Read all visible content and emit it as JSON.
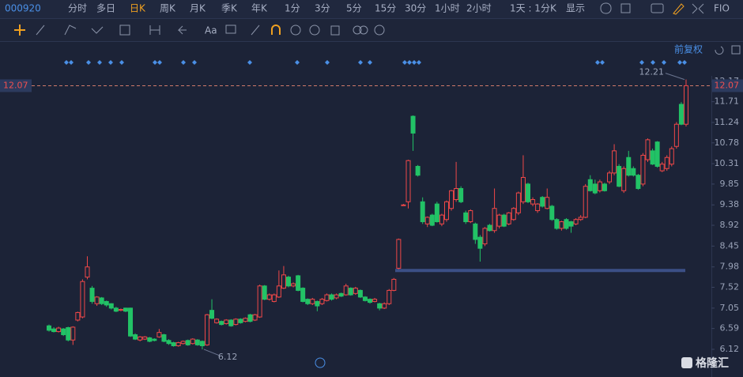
{
  "toolbar": {
    "code": "000920",
    "periods": [
      "分时",
      "多日",
      "日K",
      "周K",
      "月K",
      "季K",
      "年K",
      "1分",
      "3分",
      "5分",
      "15分",
      "30分",
      "1小时",
      "2小时"
    ],
    "active": "日K",
    "interval": "1天 : 1分K",
    "display": "显示",
    "fio": "FIO",
    "font_tool": "Aa",
    "adjust": "前复权",
    "watermark": "格隆汇"
  },
  "chart_data": {
    "type": "candlestick",
    "ylim": [
      5.62,
      12.31
    ],
    "yticks": [
      12.17,
      11.71,
      11.24,
      10.78,
      10.31,
      9.85,
      9.38,
      8.92,
      8.45,
      7.98,
      7.52,
      7.05,
      6.59,
      6.12
    ],
    "up_color": "#f04848",
    "down_color": "#22c266",
    "last_price": 12.07,
    "level_line": 7.9,
    "ohlc": [
      [
        6.65,
        6.68,
        6.52,
        6.55
      ],
      [
        6.58,
        6.62,
        6.5,
        6.52
      ],
      [
        6.52,
        6.63,
        6.5,
        6.6
      ],
      [
        6.58,
        6.6,
        6.42,
        6.45
      ],
      [
        6.61,
        6.63,
        6.3,
        6.33
      ],
      [
        6.33,
        6.64,
        6.22,
        6.62
      ],
      [
        6.78,
        6.97,
        6.75,
        6.95
      ],
      [
        6.85,
        7.7,
        6.82,
        7.65
      ],
      [
        7.75,
        8.22,
        7.7,
        7.98
      ],
      [
        7.5,
        7.55,
        7.15,
        7.2
      ],
      [
        7.15,
        7.32,
        7.1,
        7.3
      ],
      [
        7.28,
        7.3,
        7.12,
        7.15
      ],
      [
        7.2,
        7.22,
        7.08,
        7.12
      ],
      [
        7.15,
        7.16,
        7.02,
        7.05
      ],
      [
        7.05,
        7.08,
        6.96,
        6.98
      ],
      [
        7.0,
        7.04,
        6.98,
        7.02
      ],
      [
        7.05,
        7.06,
        6.96,
        6.98
      ],
      [
        7.05,
        7.06,
        6.4,
        6.42
      ],
      [
        6.45,
        6.48,
        6.33,
        6.35
      ],
      [
        6.33,
        6.42,
        6.3,
        6.4
      ],
      [
        6.35,
        6.42,
        6.33,
        6.4
      ],
      [
        6.38,
        6.4,
        6.28,
        6.3
      ],
      [
        6.35,
        6.37,
        6.3,
        6.32
      ],
      [
        6.4,
        6.58,
        6.38,
        6.5
      ],
      [
        6.45,
        6.47,
        6.28,
        6.3
      ],
      [
        6.32,
        6.35,
        6.22,
        6.25
      ],
      [
        6.27,
        6.29,
        6.18,
        6.2
      ],
      [
        6.2,
        6.29,
        6.18,
        6.27
      ],
      [
        6.25,
        6.32,
        6.23,
        6.3
      ],
      [
        6.32,
        6.34,
        6.2,
        6.22
      ],
      [
        6.25,
        6.37,
        6.23,
        6.35
      ],
      [
        6.33,
        6.35,
        6.2,
        6.22
      ],
      [
        6.3,
        6.32,
        6.12,
        6.2
      ],
      [
        6.22,
        6.92,
        6.2,
        6.9
      ],
      [
        7.0,
        7.25,
        6.8,
        6.82
      ],
      [
        6.72,
        6.82,
        6.7,
        6.8
      ],
      [
        6.75,
        6.77,
        6.66,
        6.68
      ],
      [
        6.7,
        6.8,
        6.68,
        6.78
      ],
      [
        6.78,
        6.8,
        6.63,
        6.65
      ],
      [
        6.68,
        6.82,
        6.66,
        6.8
      ],
      [
        6.8,
        6.82,
        6.7,
        6.72
      ],
      [
        6.75,
        6.84,
        6.73,
        6.82
      ],
      [
        6.9,
        6.92,
        6.73,
        6.75
      ],
      [
        6.78,
        6.92,
        6.76,
        6.9
      ],
      [
        6.85,
        7.58,
        6.83,
        7.55
      ],
      [
        7.55,
        7.57,
        7.23,
        7.25
      ],
      [
        7.25,
        7.38,
        7.22,
        7.35
      ],
      [
        7.2,
        7.38,
        7.18,
        7.35
      ],
      [
        7.3,
        7.9,
        7.28,
        7.55
      ],
      [
        7.5,
        8.0,
        7.48,
        7.8
      ],
      [
        7.75,
        7.78,
        7.52,
        7.55
      ],
      [
        7.55,
        7.63,
        7.52,
        7.6
      ],
      [
        7.78,
        7.8,
        7.43,
        7.45
      ],
      [
        7.5,
        7.52,
        7.18,
        7.2
      ],
      [
        7.25,
        7.27,
        7.12,
        7.15
      ],
      [
        7.15,
        7.28,
        7.12,
        7.25
      ],
      [
        7.2,
        7.22,
        6.98,
        7.1
      ],
      [
        7.15,
        7.28,
        7.12,
        7.25
      ],
      [
        7.22,
        7.38,
        7.2,
        7.35
      ],
      [
        7.35,
        7.38,
        7.22,
        7.25
      ],
      [
        7.28,
        7.38,
        7.25,
        7.35
      ],
      [
        7.38,
        7.4,
        7.3,
        7.32
      ],
      [
        7.35,
        7.6,
        7.33,
        7.55
      ],
      [
        7.5,
        7.52,
        7.33,
        7.35
      ],
      [
        7.38,
        7.53,
        7.35,
        7.5
      ],
      [
        7.45,
        7.47,
        7.28,
        7.3
      ],
      [
        7.3,
        7.32,
        7.2,
        7.22
      ],
      [
        7.25,
        7.27,
        7.15,
        7.18
      ],
      [
        7.2,
        7.28,
        7.18,
        7.25
      ],
      [
        7.15,
        7.17,
        7.0,
        7.05
      ],
      [
        7.05,
        7.18,
        7.03,
        7.15
      ],
      [
        7.15,
        7.48,
        7.12,
        7.45
      ],
      [
        7.45,
        7.73,
        7.43,
        7.7
      ],
      [
        7.95,
        8.62,
        7.93,
        8.6
      ],
      [
        9.38,
        9.4,
        9.36,
        9.38
      ],
      [
        9.45,
        10.4,
        9.3,
        10.38
      ],
      [
        11.38,
        11.4,
        10.6,
        11.0
      ],
      [
        10.25,
        10.28,
        10.02,
        10.05
      ],
      [
        9.45,
        9.55,
        8.95,
        9.0
      ],
      [
        8.95,
        9.12,
        8.88,
        9.1
      ],
      [
        9.15,
        9.18,
        8.9,
        8.92
      ],
      [
        9.4,
        9.45,
        8.98,
        9.0
      ],
      [
        8.95,
        9.18,
        8.9,
        9.15
      ],
      [
        9.05,
        9.48,
        9.0,
        9.45
      ],
      [
        9.3,
        9.72,
        9.25,
        9.7
      ],
      [
        9.5,
        10.35,
        9.45,
        9.75
      ],
      [
        9.75,
        9.8,
        9.42,
        9.45
      ],
      [
        9.2,
        9.25,
        8.95,
        9.0
      ],
      [
        9.0,
        9.28,
        8.97,
        9.25
      ],
      [
        8.95,
        8.98,
        8.5,
        8.6
      ],
      [
        8.65,
        8.7,
        8.1,
        8.4
      ],
      [
        8.5,
        8.88,
        8.45,
        8.85
      ],
      [
        8.92,
        8.95,
        8.78,
        8.8
      ],
      [
        8.8,
        9.75,
        8.75,
        9.3
      ],
      [
        8.9,
        9.18,
        8.85,
        9.15
      ],
      [
        9.15,
        9.18,
        8.88,
        8.9
      ],
      [
        8.95,
        9.22,
        8.92,
        9.2
      ],
      [
        9.05,
        9.33,
        9.02,
        9.3
      ],
      [
        9.2,
        9.68,
        9.15,
        9.65
      ],
      [
        9.45,
        10.5,
        9.4,
        10.0
      ],
      [
        9.85,
        9.88,
        9.42,
        9.45
      ],
      [
        9.4,
        9.55,
        9.35,
        9.5
      ],
      [
        9.25,
        9.42,
        9.2,
        9.4
      ],
      [
        9.55,
        9.58,
        9.32,
        9.35
      ],
      [
        9.3,
        9.75,
        9.28,
        9.55
      ],
      [
        9.35,
        9.38,
        9.02,
        9.05
      ],
      [
        9.05,
        9.08,
        8.82,
        8.85
      ],
      [
        8.85,
        9.02,
        8.8,
        9.0
      ],
      [
        9.05,
        9.08,
        8.82,
        8.85
      ],
      [
        9.0,
        9.02,
        8.75,
        8.9
      ],
      [
        8.95,
        9.08,
        8.92,
        9.05
      ],
      [
        9.05,
        9.15,
        9.02,
        9.1
      ],
      [
        9.1,
        9.85,
        9.08,
        9.8
      ],
      [
        9.95,
        10.05,
        9.68,
        9.7
      ],
      [
        9.85,
        9.95,
        9.62,
        9.65
      ],
      [
        9.7,
        9.95,
        9.66,
        9.9
      ],
      [
        9.85,
        9.88,
        9.68,
        9.7
      ],
      [
        9.9,
        10.15,
        9.85,
        10.1
      ],
      [
        10.1,
        10.75,
        10.05,
        10.6
      ],
      [
        10.25,
        10.3,
        9.78,
        9.8
      ],
      [
        9.7,
        10.25,
        9.65,
        10.2
      ],
      [
        10.45,
        10.6,
        10.02,
        10.05
      ],
      [
        10.2,
        10.25,
        10.02,
        10.05
      ],
      [
        10.05,
        10.08,
        9.72,
        9.75
      ],
      [
        9.85,
        10.55,
        9.8,
        10.5
      ],
      [
        10.4,
        10.88,
        10.35,
        10.85
      ],
      [
        10.6,
        10.65,
        10.28,
        10.3
      ],
      [
        10.8,
        10.82,
        10.22,
        10.25
      ],
      [
        10.15,
        10.35,
        10.12,
        10.3
      ],
      [
        10.2,
        10.5,
        10.15,
        10.45
      ],
      [
        10.3,
        10.7,
        10.25,
        10.65
      ],
      [
        10.7,
        11.25,
        10.65,
        11.2
      ],
      [
        11.65,
        11.7,
        11.18,
        11.2
      ],
      [
        11.2,
        12.21,
        11.15,
        12.07
      ]
    ]
  }
}
